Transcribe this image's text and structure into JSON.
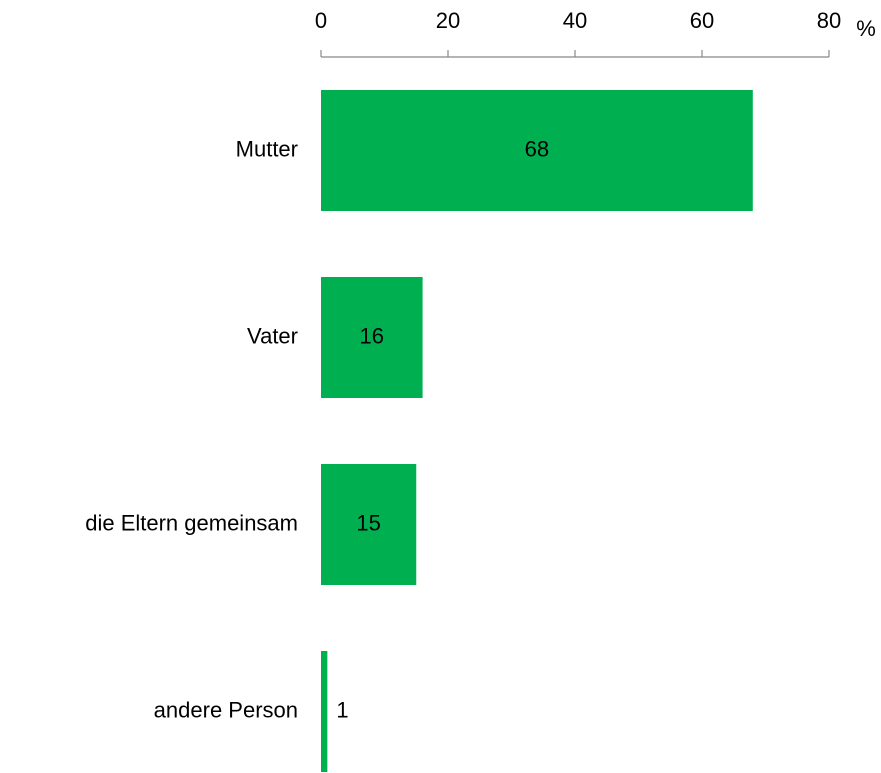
{
  "chart_data": {
    "type": "barh",
    "categories": [
      "Mutter",
      "Vater",
      "die Eltern gemeinsam",
      "andere Person"
    ],
    "values": [
      68,
      16,
      15,
      1
    ],
    "color": "#00b050",
    "xlim": [
      0,
      80
    ],
    "xticks": [
      0,
      20,
      40,
      60,
      80
    ],
    "x_label": "%"
  }
}
